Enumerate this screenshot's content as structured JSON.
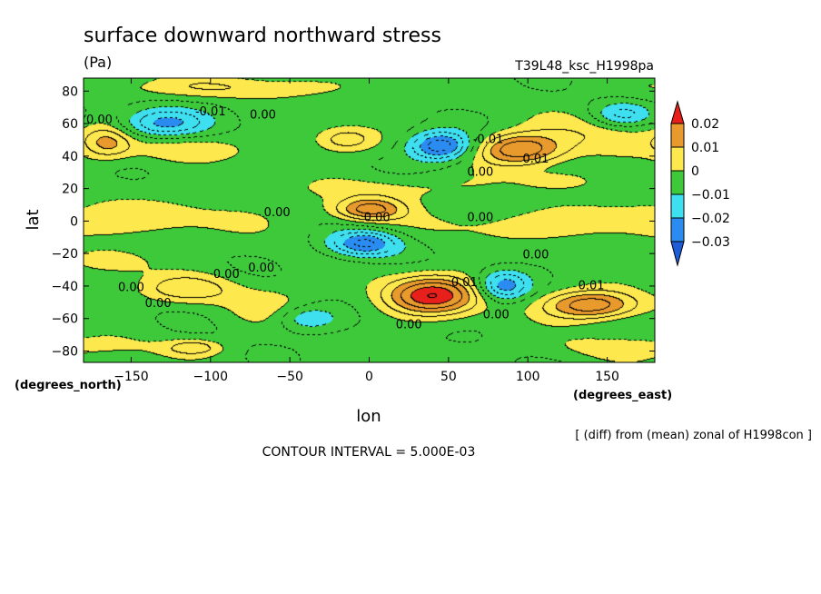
{
  "chart_data": {
    "type": "heatmap",
    "title": "surface downward northward stress",
    "units": "(Pa)",
    "dataset": "T39L48_ksc_H1998pa",
    "xlabel": "lon",
    "ylabel": "lat",
    "x_unit_label": "(degrees_east)",
    "y_unit_label": "(degrees_north)",
    "xlim": [
      -180,
      180
    ],
    "ylim": [
      -87,
      88
    ],
    "x_ticks": [
      -150,
      -100,
      -50,
      0,
      50,
      100,
      150
    ],
    "y_ticks": [
      -80,
      -60,
      -40,
      -20,
      0,
      20,
      40,
      60,
      80
    ],
    "x_tick_labels": [
      "−150",
      "−100",
      "−50",
      "0",
      "50",
      "100",
      "150"
    ],
    "y_tick_labels": [
      "−80",
      "−60",
      "−40",
      "−20",
      "0",
      "20",
      "40",
      "60",
      "80"
    ],
    "colorbar": {
      "levels": [
        0.02,
        0.01,
        0,
        -0.01,
        -0.02,
        -0.03
      ],
      "labels": [
        "0.02",
        "0.01",
        "0",
        "−0.01",
        "−0.02",
        "−0.03"
      ],
      "colors": [
        "#e8201c",
        "#e89a2c",
        "#fde84e",
        "#3dc93a",
        "#3ee0f0",
        "#2a8cf0",
        "#1f5cd8"
      ]
    },
    "background_value": -0.004,
    "features": [
      {
        "lon": 0,
        "lat": 7,
        "rx": 22,
        "ry": 7,
        "value": 0.02
      },
      {
        "lon": -3,
        "lat": -14,
        "rx": 22,
        "ry": 8,
        "value": -0.022
      },
      {
        "lon": 40,
        "lat": -46,
        "rx": 30,
        "ry": 12,
        "value": 0.028
      },
      {
        "lon": 95,
        "lat": 44,
        "rx": 28,
        "ry": 10,
        "value": 0.024
      },
      {
        "lon": 140,
        "lat": -52,
        "rx": 30,
        "ry": 9,
        "value": 0.024
      },
      {
        "lon": 45,
        "lat": 46,
        "rx": 20,
        "ry": 9,
        "value": -0.026
      },
      {
        "lon": 85,
        "lat": -40,
        "rx": 16,
        "ry": 9,
        "value": -0.02
      },
      {
        "lon": -130,
        "lat": 60,
        "rx": 28,
        "ry": 9,
        "value": -0.018
      },
      {
        "lon": -15,
        "lat": 50,
        "rx": 20,
        "ry": 8,
        "value": 0.012
      },
      {
        "lon": -165,
        "lat": 48,
        "rx": 15,
        "ry": 10,
        "value": 0.013
      },
      {
        "lon": -115,
        "lat": -42,
        "rx": 30,
        "ry": 9,
        "value": 0.012
      },
      {
        "lon": -110,
        "lat": -78,
        "rx": 18,
        "ry": 5,
        "value": 0.011
      },
      {
        "lon": 160,
        "lat": 65,
        "rx": 20,
        "ry": 8,
        "value": -0.015
      },
      {
        "lon": -140,
        "lat": 2,
        "rx": 90,
        "ry": 12,
        "value": 0.006
      },
      {
        "lon": 110,
        "lat": -3,
        "rx": 80,
        "ry": 10,
        "value": 0.006
      },
      {
        "lon": 20,
        "lat": 20,
        "rx": 60,
        "ry": 8,
        "value": 0.006
      },
      {
        "lon": -120,
        "lat": 44,
        "rx": 45,
        "ry": 9,
        "value": 0.007
      },
      {
        "lon": 150,
        "lat": 55,
        "rx": 40,
        "ry": 15,
        "value": 0.008
      },
      {
        "lon": -90,
        "lat": 82,
        "rx": 90,
        "ry": 7,
        "value": 0.008
      },
      {
        "lon": -60,
        "lat": -52,
        "rx": 30,
        "ry": 14,
        "value": 0.006
      },
      {
        "lon": 170,
        "lat": -78,
        "rx": 60,
        "ry": 8,
        "value": 0.006
      },
      {
        "lon": -40,
        "lat": -60,
        "rx": 20,
        "ry": 8,
        "value": -0.012
      },
      {
        "lon": -160,
        "lat": -25,
        "rx": 25,
        "ry": 8,
        "value": 0.007
      },
      {
        "lon": 120,
        "lat": 25,
        "rx": 25,
        "ry": 6,
        "value": 0.006
      }
    ],
    "contour_labels": [
      {
        "text": "0.00",
        "lon": -170,
        "lat": 60
      },
      {
        "text": "-0.01",
        "lon": -100,
        "lat": 65
      },
      {
        "text": "0.00",
        "lon": -67,
        "lat": 63
      },
      {
        "text": "0.00",
        "lon": -58,
        "lat": 3
      },
      {
        "text": "0.00",
        "lon": 5,
        "lat": 0
      },
      {
        "text": "-0.01",
        "lon": 75,
        "lat": 48
      },
      {
        "text": "0.01",
        "lon": 105,
        "lat": 36
      },
      {
        "text": "0.00",
        "lon": 70,
        "lat": 0
      },
      {
        "text": "0.00",
        "lon": 70,
        "lat": 28
      },
      {
        "text": "0.00",
        "lon": -90,
        "lat": -35
      },
      {
        "text": "0.00",
        "lon": -68,
        "lat": -31
      },
      {
        "text": "0.00",
        "lon": -133,
        "lat": -53
      },
      {
        "text": "0.00",
        "lon": -150,
        "lat": -43
      },
      {
        "text": "0.01",
        "lon": 60,
        "lat": -40
      },
      {
        "text": "0.00",
        "lon": 25,
        "lat": -66
      },
      {
        "text": "0.00",
        "lon": 80,
        "lat": -60
      },
      {
        "text": "0.00",
        "lon": 105,
        "lat": -23
      },
      {
        "text": "0.01",
        "lon": 140,
        "lat": -42
      }
    ],
    "contour_interval_text": "CONTOUR INTERVAL = 5.000E-03",
    "note_text": "[ (diff) from (mean) zonal of H1998con ]"
  }
}
